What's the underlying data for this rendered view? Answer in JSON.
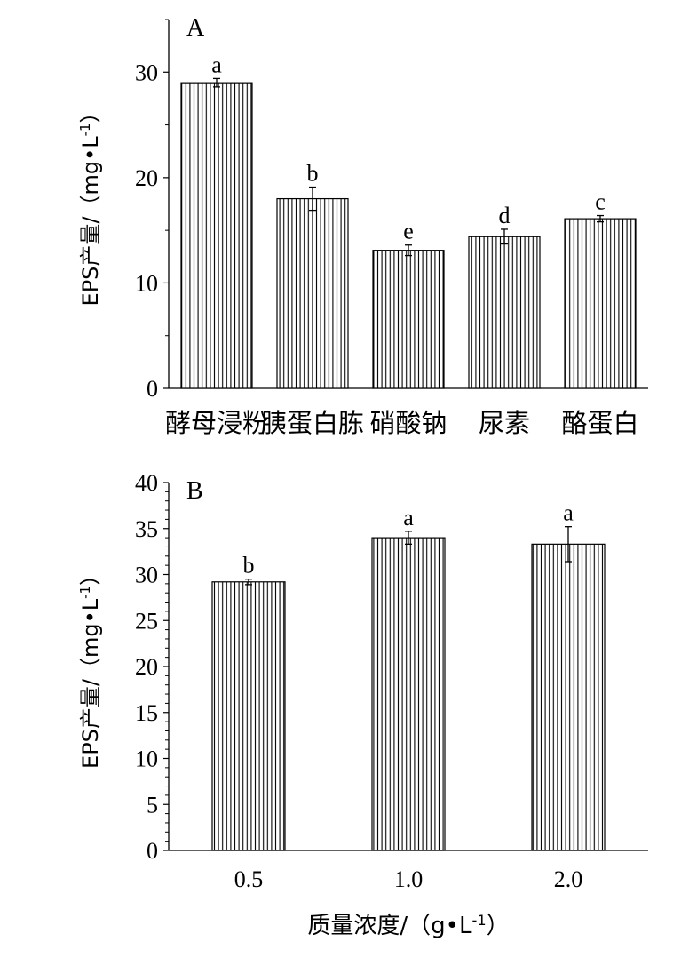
{
  "chart_data": [
    {
      "type": "bar",
      "panel_label": "A",
      "categories": [
        "酵母浸粉",
        "胰蛋白胨",
        "硝酸钠",
        "尿素",
        "酪蛋白"
      ],
      "values": [
        29.0,
        18.0,
        13.1,
        14.4,
        16.1
      ],
      "errors": [
        0.4,
        1.1,
        0.5,
        0.7,
        0.3
      ],
      "significance": [
        "a",
        "b",
        "e",
        "d",
        "c"
      ],
      "ylabel": "EPS产量/（mg•L-1）",
      "ylabel_parts": {
        "main": "EPS产量/（mg•L",
        "sup": "-1",
        "tail": "）"
      },
      "xlabel": "",
      "ylim": [
        0,
        35
      ],
      "yticks": [
        0,
        10,
        20,
        30
      ],
      "grid": false,
      "bar_pattern": "vertical-hatch"
    },
    {
      "type": "bar",
      "panel_label": "B",
      "categories": [
        "0.5",
        "1.0",
        "2.0"
      ],
      "values": [
        29.2,
        34.0,
        33.3
      ],
      "errors": [
        0.3,
        0.7,
        1.9
      ],
      "significance": [
        "b",
        "a",
        "a"
      ],
      "ylabel": "EPS产量/（mg•L-1）",
      "ylabel_parts": {
        "main": "EPS产量/（mg•L",
        "sup": "-1",
        "tail": "）"
      },
      "xlabel": "质量浓度/（g•L-1）",
      "xlabel_parts": {
        "main": "质量浓度/（g•L",
        "sup": "-1",
        "tail": "）"
      },
      "ylim": [
        0,
        40
      ],
      "yticks": [
        0,
        5,
        10,
        15,
        20,
        25,
        30,
        35,
        40
      ],
      "grid": false,
      "bar_pattern": "vertical-hatch"
    }
  ]
}
